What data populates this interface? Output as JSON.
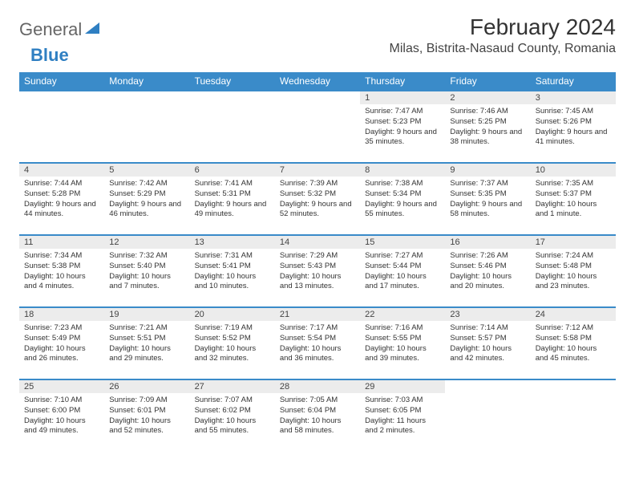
{
  "brand": {
    "word1": "General",
    "word2": "Blue"
  },
  "title": "February 2024",
  "location": "Milas, Bistrita-Nasaud County, Romania",
  "colors": {
    "header_bg": "#3a8bc9",
    "header_text": "#ffffff",
    "border": "#3a8bc9",
    "daynum_bg": "#ececec",
    "text": "#333333",
    "brand_gray": "#666666",
    "brand_blue": "#2f7fc2"
  },
  "day_headers": [
    "Sunday",
    "Monday",
    "Tuesday",
    "Wednesday",
    "Thursday",
    "Friday",
    "Saturday"
  ],
  "weeks": [
    [
      {
        "n": "",
        "sr": "",
        "ss": "",
        "dl": ""
      },
      {
        "n": "",
        "sr": "",
        "ss": "",
        "dl": ""
      },
      {
        "n": "",
        "sr": "",
        "ss": "",
        "dl": ""
      },
      {
        "n": "",
        "sr": "",
        "ss": "",
        "dl": ""
      },
      {
        "n": "1",
        "sr": "Sunrise: 7:47 AM",
        "ss": "Sunset: 5:23 PM",
        "dl": "Daylight: 9 hours and 35 minutes."
      },
      {
        "n": "2",
        "sr": "Sunrise: 7:46 AM",
        "ss": "Sunset: 5:25 PM",
        "dl": "Daylight: 9 hours and 38 minutes."
      },
      {
        "n": "3",
        "sr": "Sunrise: 7:45 AM",
        "ss": "Sunset: 5:26 PM",
        "dl": "Daylight: 9 hours and 41 minutes."
      }
    ],
    [
      {
        "n": "4",
        "sr": "Sunrise: 7:44 AM",
        "ss": "Sunset: 5:28 PM",
        "dl": "Daylight: 9 hours and 44 minutes."
      },
      {
        "n": "5",
        "sr": "Sunrise: 7:42 AM",
        "ss": "Sunset: 5:29 PM",
        "dl": "Daylight: 9 hours and 46 minutes."
      },
      {
        "n": "6",
        "sr": "Sunrise: 7:41 AM",
        "ss": "Sunset: 5:31 PM",
        "dl": "Daylight: 9 hours and 49 minutes."
      },
      {
        "n": "7",
        "sr": "Sunrise: 7:39 AM",
        "ss": "Sunset: 5:32 PM",
        "dl": "Daylight: 9 hours and 52 minutes."
      },
      {
        "n": "8",
        "sr": "Sunrise: 7:38 AM",
        "ss": "Sunset: 5:34 PM",
        "dl": "Daylight: 9 hours and 55 minutes."
      },
      {
        "n": "9",
        "sr": "Sunrise: 7:37 AM",
        "ss": "Sunset: 5:35 PM",
        "dl": "Daylight: 9 hours and 58 minutes."
      },
      {
        "n": "10",
        "sr": "Sunrise: 7:35 AM",
        "ss": "Sunset: 5:37 PM",
        "dl": "Daylight: 10 hours and 1 minute."
      }
    ],
    [
      {
        "n": "11",
        "sr": "Sunrise: 7:34 AM",
        "ss": "Sunset: 5:38 PM",
        "dl": "Daylight: 10 hours and 4 minutes."
      },
      {
        "n": "12",
        "sr": "Sunrise: 7:32 AM",
        "ss": "Sunset: 5:40 PM",
        "dl": "Daylight: 10 hours and 7 minutes."
      },
      {
        "n": "13",
        "sr": "Sunrise: 7:31 AM",
        "ss": "Sunset: 5:41 PM",
        "dl": "Daylight: 10 hours and 10 minutes."
      },
      {
        "n": "14",
        "sr": "Sunrise: 7:29 AM",
        "ss": "Sunset: 5:43 PM",
        "dl": "Daylight: 10 hours and 13 minutes."
      },
      {
        "n": "15",
        "sr": "Sunrise: 7:27 AM",
        "ss": "Sunset: 5:44 PM",
        "dl": "Daylight: 10 hours and 17 minutes."
      },
      {
        "n": "16",
        "sr": "Sunrise: 7:26 AM",
        "ss": "Sunset: 5:46 PM",
        "dl": "Daylight: 10 hours and 20 minutes."
      },
      {
        "n": "17",
        "sr": "Sunrise: 7:24 AM",
        "ss": "Sunset: 5:48 PM",
        "dl": "Daylight: 10 hours and 23 minutes."
      }
    ],
    [
      {
        "n": "18",
        "sr": "Sunrise: 7:23 AM",
        "ss": "Sunset: 5:49 PM",
        "dl": "Daylight: 10 hours and 26 minutes."
      },
      {
        "n": "19",
        "sr": "Sunrise: 7:21 AM",
        "ss": "Sunset: 5:51 PM",
        "dl": "Daylight: 10 hours and 29 minutes."
      },
      {
        "n": "20",
        "sr": "Sunrise: 7:19 AM",
        "ss": "Sunset: 5:52 PM",
        "dl": "Daylight: 10 hours and 32 minutes."
      },
      {
        "n": "21",
        "sr": "Sunrise: 7:17 AM",
        "ss": "Sunset: 5:54 PM",
        "dl": "Daylight: 10 hours and 36 minutes."
      },
      {
        "n": "22",
        "sr": "Sunrise: 7:16 AM",
        "ss": "Sunset: 5:55 PM",
        "dl": "Daylight: 10 hours and 39 minutes."
      },
      {
        "n": "23",
        "sr": "Sunrise: 7:14 AM",
        "ss": "Sunset: 5:57 PM",
        "dl": "Daylight: 10 hours and 42 minutes."
      },
      {
        "n": "24",
        "sr": "Sunrise: 7:12 AM",
        "ss": "Sunset: 5:58 PM",
        "dl": "Daylight: 10 hours and 45 minutes."
      }
    ],
    [
      {
        "n": "25",
        "sr": "Sunrise: 7:10 AM",
        "ss": "Sunset: 6:00 PM",
        "dl": "Daylight: 10 hours and 49 minutes."
      },
      {
        "n": "26",
        "sr": "Sunrise: 7:09 AM",
        "ss": "Sunset: 6:01 PM",
        "dl": "Daylight: 10 hours and 52 minutes."
      },
      {
        "n": "27",
        "sr": "Sunrise: 7:07 AM",
        "ss": "Sunset: 6:02 PM",
        "dl": "Daylight: 10 hours and 55 minutes."
      },
      {
        "n": "28",
        "sr": "Sunrise: 7:05 AM",
        "ss": "Sunset: 6:04 PM",
        "dl": "Daylight: 10 hours and 58 minutes."
      },
      {
        "n": "29",
        "sr": "Sunrise: 7:03 AM",
        "ss": "Sunset: 6:05 PM",
        "dl": "Daylight: 11 hours and 2 minutes."
      },
      {
        "n": "",
        "sr": "",
        "ss": "",
        "dl": ""
      },
      {
        "n": "",
        "sr": "",
        "ss": "",
        "dl": ""
      }
    ]
  ]
}
